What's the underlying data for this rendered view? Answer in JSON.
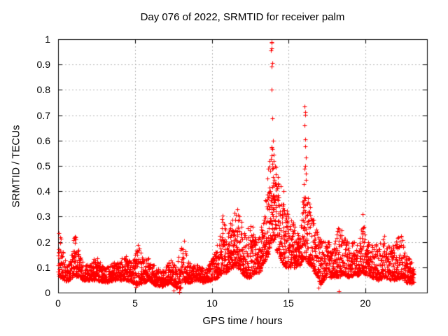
{
  "chart_data": {
    "type": "scatter",
    "title": "Day 076 of 2022, SRMTID for receiver palm",
    "xlabel": "GPS time / hours",
    "ylabel": "SRMTID / TECUs",
    "xlim": [
      0,
      24
    ],
    "ylim": [
      0,
      1
    ],
    "grid": true,
    "legend": "none",
    "marker": "plus",
    "marker_color": "#ff0000",
    "grid_color": "#b0b0b0",
    "axis_color": "#000000",
    "x_ticks": [
      [
        0,
        "0"
      ],
      [
        5,
        "5"
      ],
      [
        10,
        "10"
      ],
      [
        15,
        "15"
      ],
      [
        20,
        "20"
      ]
    ],
    "y_ticks": [
      [
        0,
        "0"
      ],
      [
        0.1,
        "0.1"
      ],
      [
        0.2,
        "0.2"
      ],
      [
        0.3,
        "0.3"
      ],
      [
        0.4,
        "0.4"
      ],
      [
        0.5,
        "0.5"
      ],
      [
        0.6,
        "0.6"
      ],
      [
        0.7,
        "0.7"
      ],
      [
        0.8,
        "0.8"
      ],
      [
        0.9,
        "0.9"
      ],
      [
        1,
        "1"
      ]
    ],
    "x_data_start": 0,
    "x_data_end": 23.15,
    "envelope_bands_comment": "each entry: [gps_hour, y_min, y_max, density] read from pixel envelope of the scatter cloud",
    "envelope_bands": [
      [
        0.0,
        0.07,
        0.17,
        2.0
      ],
      [
        0.15,
        0.06,
        0.24,
        2.0
      ],
      [
        0.35,
        0.05,
        0.15,
        2.0
      ],
      [
        0.6,
        0.045,
        0.1,
        2.0
      ],
      [
        0.9,
        0.06,
        0.16,
        2.0
      ],
      [
        1.05,
        0.07,
        0.25,
        2.2
      ],
      [
        1.25,
        0.06,
        0.18,
        2.0
      ],
      [
        1.6,
        0.05,
        0.12,
        1.8
      ],
      [
        2.1,
        0.05,
        0.11,
        1.8
      ],
      [
        2.45,
        0.05,
        0.15,
        1.8
      ],
      [
        2.8,
        0.045,
        0.11,
        1.8
      ],
      [
        3.2,
        0.04,
        0.1,
        1.8
      ],
      [
        3.6,
        0.05,
        0.12,
        1.8
      ],
      [
        4.0,
        0.05,
        0.12,
        1.8
      ],
      [
        4.45,
        0.05,
        0.17,
        2.0
      ],
      [
        4.8,
        0.04,
        0.12,
        1.8
      ],
      [
        5.2,
        0.03,
        0.19,
        2.0
      ],
      [
        5.6,
        0.04,
        0.13,
        1.8
      ],
      [
        5.9,
        0.05,
        0.15,
        1.8
      ],
      [
        6.3,
        0.03,
        0.1,
        1.8
      ],
      [
        6.8,
        0.025,
        0.09,
        1.8
      ],
      [
        7.3,
        0.04,
        0.13,
        1.8
      ],
      [
        7.7,
        0.02,
        0.1,
        1.8
      ],
      [
        7.95,
        0.015,
        0.17,
        2.0
      ],
      [
        8.15,
        0.04,
        0.2,
        1.8
      ],
      [
        8.5,
        0.04,
        0.12,
        1.8
      ],
      [
        9.0,
        0.05,
        0.11,
        1.8
      ],
      [
        9.5,
        0.04,
        0.1,
        1.8
      ],
      [
        10.0,
        0.05,
        0.13,
        2.0
      ],
      [
        10.4,
        0.06,
        0.2,
        2.2
      ],
      [
        10.7,
        0.08,
        0.3,
        2.2
      ],
      [
        11.0,
        0.08,
        0.22,
        2.2
      ],
      [
        11.35,
        0.1,
        0.32,
        2.4
      ],
      [
        11.65,
        0.1,
        0.33,
        2.4
      ],
      [
        11.95,
        0.08,
        0.28,
        2.2
      ],
      [
        12.2,
        0.06,
        0.22,
        2.2
      ],
      [
        12.5,
        0.06,
        0.3,
        2.2
      ],
      [
        12.8,
        0.08,
        0.22,
        2.2
      ],
      [
        13.1,
        0.08,
        0.25,
        2.2
      ],
      [
        13.4,
        0.12,
        0.32,
        2.4
      ],
      [
        13.65,
        0.15,
        0.48,
        2.6
      ],
      [
        13.85,
        0.2,
        0.58,
        2.8
      ],
      [
        14.05,
        0.2,
        0.56,
        2.8
      ],
      [
        14.25,
        0.16,
        0.45,
        2.6
      ],
      [
        14.55,
        0.12,
        0.38,
        2.4
      ],
      [
        14.85,
        0.1,
        0.33,
        2.4
      ],
      [
        15.15,
        0.1,
        0.3,
        2.2
      ],
      [
        15.45,
        0.1,
        0.26,
        2.2
      ],
      [
        15.75,
        0.11,
        0.24,
        2.2
      ],
      [
        16.0,
        0.14,
        0.46,
        2.6
      ],
      [
        16.2,
        0.12,
        0.42,
        2.4
      ],
      [
        16.5,
        0.1,
        0.32,
        2.2
      ],
      [
        16.8,
        0.07,
        0.27,
        2.2
      ],
      [
        17.05,
        0.03,
        0.21,
        2.0
      ],
      [
        17.35,
        0.06,
        0.2,
        2.0
      ],
      [
        17.65,
        0.06,
        0.22,
        2.0
      ],
      [
        18.0,
        0.06,
        0.2,
        2.0
      ],
      [
        18.3,
        0.06,
        0.28,
        2.0
      ],
      [
        18.6,
        0.07,
        0.22,
        2.0
      ],
      [
        18.95,
        0.06,
        0.2,
        2.0
      ],
      [
        19.3,
        0.07,
        0.2,
        2.0
      ],
      [
        19.55,
        0.07,
        0.18,
        2.0
      ],
      [
        19.8,
        0.08,
        0.3,
        2.2
      ],
      [
        20.1,
        0.07,
        0.2,
        2.0
      ],
      [
        20.45,
        0.06,
        0.22,
        2.0
      ],
      [
        20.8,
        0.05,
        0.18,
        2.0
      ],
      [
        21.2,
        0.06,
        0.23,
        2.0
      ],
      [
        21.6,
        0.05,
        0.18,
        2.0
      ],
      [
        22.0,
        0.05,
        0.21,
        2.0
      ],
      [
        22.3,
        0.06,
        0.24,
        2.0
      ],
      [
        22.6,
        0.04,
        0.16,
        2.0
      ],
      [
        22.9,
        0.035,
        0.13,
        2.0
      ],
      [
        23.15,
        0.04,
        0.1,
        1.8
      ]
    ],
    "outlier_points_comment": "distinct isolated markers read directly off the plot [gps_hour, SRMTID_TECUs]",
    "outlier_points": [
      [
        13.88,
        0.985
      ],
      [
        13.91,
        0.99
      ],
      [
        13.9,
        0.965
      ],
      [
        13.86,
        0.955
      ],
      [
        13.92,
        0.905
      ],
      [
        13.89,
        0.893
      ],
      [
        13.9,
        0.8
      ],
      [
        13.94,
        0.688
      ],
      [
        13.97,
        0.6
      ],
      [
        13.91,
        0.575
      ],
      [
        13.75,
        0.52
      ],
      [
        14.02,
        0.545
      ],
      [
        14.3,
        0.455
      ],
      [
        14.35,
        0.42
      ],
      [
        14.5,
        0.42
      ],
      [
        14.65,
        0.4
      ],
      [
        16.04,
        0.735
      ],
      [
        16.06,
        0.712
      ],
      [
        16.07,
        0.703
      ],
      [
        16.05,
        0.66
      ],
      [
        16.09,
        0.605
      ],
      [
        16.08,
        0.578
      ],
      [
        16.1,
        0.532
      ],
      [
        16.06,
        0.5
      ],
      [
        16.02,
        0.49
      ],
      [
        16.11,
        0.47
      ],
      [
        16.13,
        0.445
      ],
      [
        10.68,
        0.305
      ],
      [
        10.66,
        0.29
      ],
      [
        11.65,
        0.33
      ],
      [
        8.2,
        0.205
      ],
      [
        0.05,
        0.235
      ],
      [
        19.8,
        0.31
      ],
      [
        7.52,
        0.008
      ],
      [
        7.88,
        0.004
      ],
      [
        7.9,
        0.002
      ],
      [
        18.28,
        0.006
      ],
      [
        16.93,
        0.02
      ],
      [
        5.06,
        0.022
      ]
    ]
  }
}
